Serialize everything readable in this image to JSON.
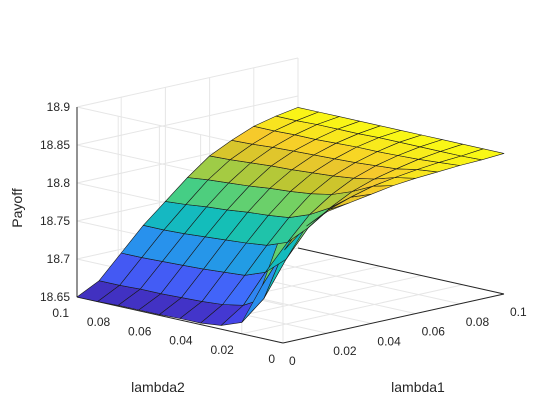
{
  "chart_data": {
    "type": "surface",
    "title": "",
    "xlabel": "lambda1",
    "ylabel": "lambda2",
    "zlabel": "Payoff",
    "xlim": [
      0,
      0.1
    ],
    "ylim": [
      0,
      0.1
    ],
    "zlim": [
      18.65,
      18.9
    ],
    "x_ticks": [
      "0",
      "0.02",
      "0.04",
      "0.06",
      "0.08",
      "0.1"
    ],
    "y_ticks": [
      "0",
      "0.02",
      "0.04",
      "0.06",
      "0.08",
      "0.1"
    ],
    "z_ticks": [
      "18.65",
      "18.7",
      "18.75",
      "18.8",
      "18.85",
      "18.9"
    ],
    "grid": true,
    "colormap": "parula",
    "x": [
      0,
      0.01,
      0.02,
      0.03,
      0.04,
      0.05,
      0.06,
      0.07,
      0.08,
      0.09,
      0.1
    ],
    "y": [
      0,
      0.01,
      0.02,
      0.03,
      0.04,
      0.05,
      0.06,
      0.07,
      0.08,
      0.09,
      0.1
    ],
    "z": [
      [
        18.8,
        18.805,
        18.81,
        18.815,
        18.82,
        18.825,
        18.828,
        18.83,
        18.832,
        18.833,
        18.835
      ],
      [
        18.72,
        18.76,
        18.785,
        18.8,
        18.81,
        18.818,
        18.823,
        18.827,
        18.83,
        18.832,
        18.835
      ],
      [
        18.665,
        18.69,
        18.735,
        18.77,
        18.79,
        18.805,
        18.815,
        18.822,
        18.828,
        18.832,
        18.835
      ],
      [
        18.655,
        18.675,
        18.712,
        18.745,
        18.775,
        18.795,
        18.81,
        18.82,
        18.827,
        18.832,
        18.835
      ],
      [
        18.652,
        18.67,
        18.702,
        18.735,
        18.765,
        18.79,
        18.807,
        18.818,
        18.826,
        18.832,
        18.835
      ],
      [
        18.652,
        18.668,
        18.7,
        18.732,
        18.762,
        18.787,
        18.805,
        18.817,
        18.826,
        18.832,
        18.835
      ],
      [
        18.651,
        18.667,
        18.698,
        18.73,
        18.76,
        18.785,
        18.803,
        18.816,
        18.825,
        18.831,
        18.835
      ],
      [
        18.651,
        18.666,
        18.697,
        18.728,
        18.757,
        18.782,
        18.802,
        18.815,
        18.824,
        18.831,
        18.835
      ],
      [
        18.651,
        18.666,
        18.696,
        18.726,
        18.755,
        18.78,
        18.8,
        18.814,
        18.824,
        18.831,
        18.835
      ],
      [
        18.65,
        18.665,
        18.695,
        18.725,
        18.752,
        18.778,
        18.798,
        18.812,
        18.823,
        18.83,
        18.835
      ],
      [
        18.65,
        18.665,
        18.695,
        18.725,
        18.75,
        18.775,
        18.797,
        18.811,
        18.823,
        18.83,
        18.835
      ]
    ]
  }
}
